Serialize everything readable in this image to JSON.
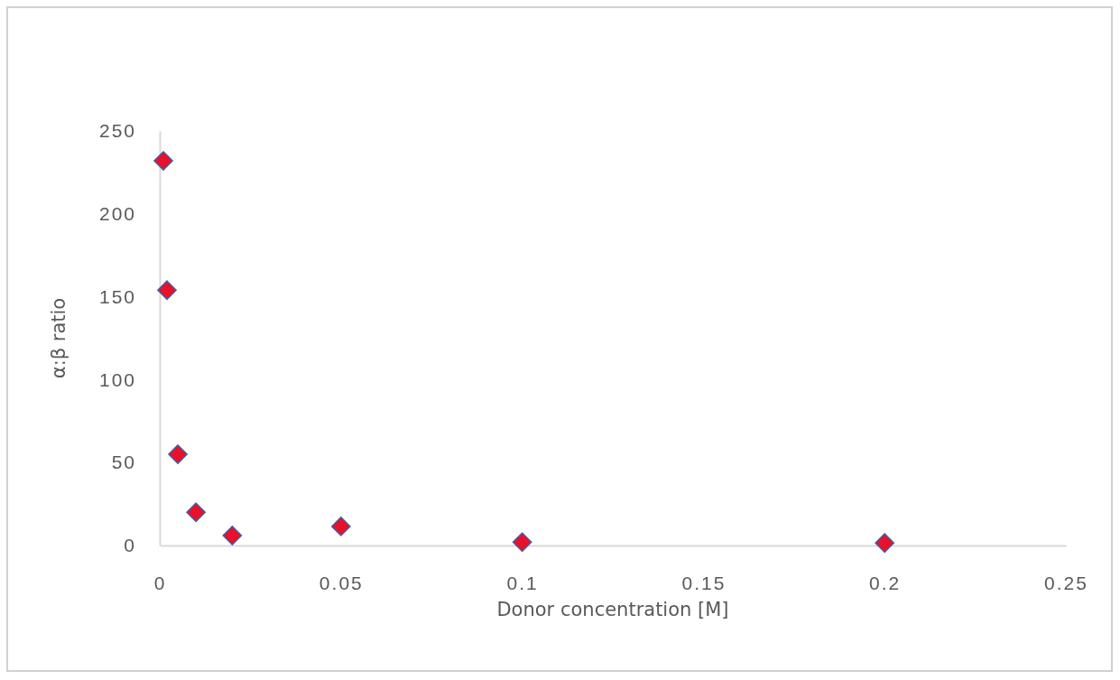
{
  "chart_data": {
    "type": "scatter",
    "xlabel": "Donor concentration [M]",
    "ylabel": "α:β ratio",
    "x": [
      0.001,
      0.002,
      0.005,
      0.01,
      0.02,
      0.05,
      0.1,
      0.2
    ],
    "series": [
      {
        "color": "#e8102a",
        "values": [
          232,
          154,
          55,
          20,
          6,
          11.5,
          2,
          1.5
        ]
      }
    ],
    "xlim": [
      0,
      0.25
    ],
    "xticks": [
      0,
      0.05,
      0.1,
      0.15,
      0.2,
      0.25
    ],
    "ylim": [
      0,
      250
    ],
    "yticks": [
      0,
      50,
      100,
      150,
      200,
      250
    ],
    "grid": false,
    "marker": "diamond"
  }
}
